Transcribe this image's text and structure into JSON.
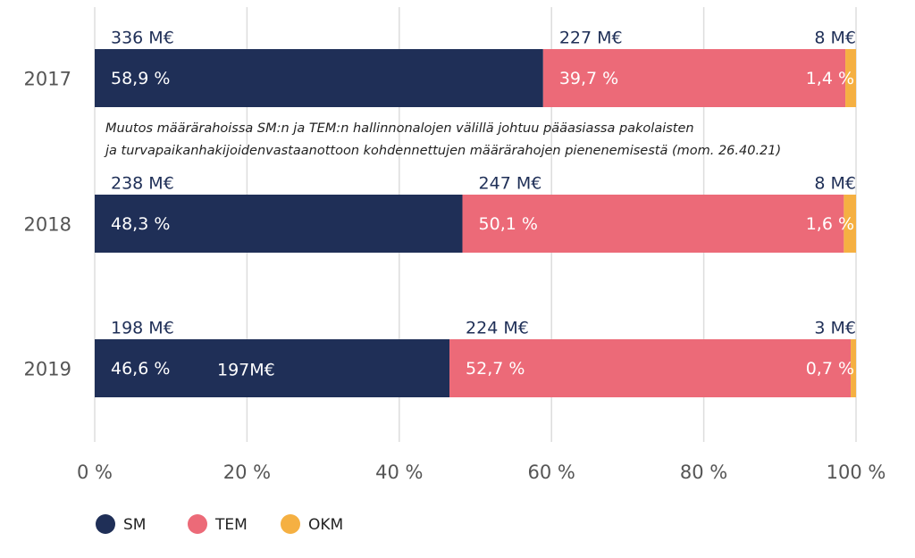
{
  "chart_data": {
    "type": "stacked_barh",
    "categories": [
      "2017",
      "2018",
      "2019"
    ],
    "series": [
      {
        "name": "SM",
        "color": "#1f2f57",
        "values": [
          58.9,
          48.3,
          46.6
        ],
        "value_labels": [
          "58,9 %",
          "48,3 %",
          "46,6 %"
        ],
        "amount_labels": [
          "336 M€",
          "238 M€",
          "198 M€"
        ]
      },
      {
        "name": "TEM",
        "color": "#ec6a78",
        "values": [
          39.7,
          50.1,
          52.7
        ],
        "value_labels": [
          "39,7 %",
          "50,1 %",
          "52,7 %"
        ],
        "amount_labels": [
          "227 M€",
          "247 M€",
          "224 M€"
        ]
      },
      {
        "name": "OKM",
        "color": "#f5b042",
        "values": [
          1.4,
          1.6,
          0.7
        ],
        "value_labels": [
          "1,4 %",
          "1,6 %",
          "0,7 %"
        ],
        "amount_labels": [
          "8 M€",
          "8 M€",
          "3 M€"
        ]
      }
    ],
    "annotations": [
      "Muutos määrärahoissa SM:n ja TEM:n hallinnonalojen välillä johtuu pääasiassa pakolaisten",
      "ja turvapaikanhakijoidenvastaanottoon kohdennettujen määrärahojen pienenemisestä (mom. 26.40.21)",
      "197M€"
    ],
    "xlim": [
      0,
      100
    ],
    "xticks": [
      {
        "value": 0,
        "label": "0 %"
      },
      {
        "value": 20,
        "label": "20 %"
      },
      {
        "value": 40,
        "label": "40 %"
      },
      {
        "value": 60,
        "label": "60 %"
      },
      {
        "value": 80,
        "label": "80 %"
      },
      {
        "value": 100,
        "label": "100 %"
      }
    ],
    "grid": true
  }
}
